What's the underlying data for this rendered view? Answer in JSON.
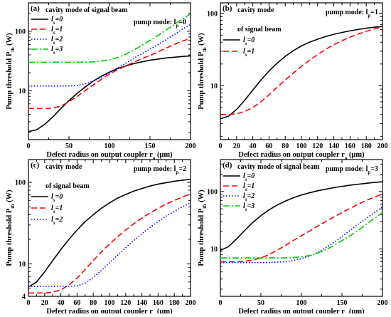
{
  "chart_data": [
    {
      "type": "line",
      "panel_label": "(a)",
      "title": "cavity mode of signal beam",
      "title2": "",
      "annotation": "pump mode: lp=0",
      "xlabel": "Defect radius on output coupler ra (μm)",
      "ylabel": "Pump threshold Pth (W)",
      "xlim": [
        0,
        200
      ],
      "ylim": [
        1.5,
        300
      ],
      "yscale": "log",
      "xticks": [
        0,
        50,
        100,
        150,
        200
      ],
      "yticks": [
        10,
        100
      ],
      "x": [
        0,
        10,
        20,
        30,
        40,
        50,
        60,
        70,
        80,
        90,
        100,
        110,
        120,
        130,
        140,
        150,
        160,
        170,
        180,
        190,
        200
      ],
      "series": [
        {
          "name": "ls=0",
          "color": "#000000",
          "dash": "",
          "values": [
            2.05,
            2.2,
            2.7,
            3.6,
            5.0,
            6.8,
            9.0,
            11.5,
            14.5,
            17.5,
            20.5,
            23.5,
            26.0,
            28.5,
            30.5,
            32.5,
            34.0,
            35.5,
            36.5,
            37.5,
            38.5
          ]
        },
        {
          "name": "ls=1",
          "color": "#ff0000",
          "dash": "8,4",
          "values": [
            5.0,
            5.0,
            5.0,
            5.1,
            5.5,
            6.5,
            8.0,
            10.0,
            12.5,
            15.5,
            19.0,
            22.5,
            26.0,
            30.0,
            34.5,
            39.0,
            45.0,
            52.0,
            60.0,
            68.0,
            76.0
          ]
        },
        {
          "name": "ls=2",
          "color": "#0000ff",
          "dash": "1.5,2.5",
          "values": [
            12.0,
            12.0,
            12.0,
            12.0,
            12.0,
            12.0,
            12.2,
            13.0,
            14.5,
            17.0,
            20.0,
            24.0,
            29.0,
            35.0,
            42.0,
            50.0,
            60.0,
            72.0,
            88.0,
            108.0,
            130.0
          ]
        },
        {
          "name": "ls=3",
          "color": "#00cc00",
          "dash": "9,3,2,3",
          "values": [
            30.0,
            30.0,
            30.0,
            30.0,
            30.0,
            30.0,
            30.0,
            30.0,
            30.5,
            31.5,
            33.0,
            36.0,
            41.0,
            48.0,
            58.0,
            70.0,
            85.0,
            105.0,
            130.0,
            160.0,
            195.0
          ]
        }
      ]
    },
    {
      "type": "line",
      "panel_label": "(b)",
      "title": "cavity mode",
      "title2": "of signal beam",
      "annotation": "pump mode: lp=1",
      "xlabel": "Defect radius on output coupler ra (μm)",
      "ylabel": "Pump threshold Pth (W)",
      "xlim": [
        0,
        200
      ],
      "ylim": [
        1.8,
        140
      ],
      "yscale": "log",
      "xticks": [
        0,
        20,
        40,
        60,
        80,
        100,
        120,
        140,
        160,
        180,
        200
      ],
      "yticks": [
        10,
        100
      ],
      "x": [
        0,
        10,
        20,
        30,
        40,
        50,
        60,
        70,
        80,
        90,
        100,
        110,
        120,
        130,
        140,
        150,
        160,
        170,
        180,
        190,
        200
      ],
      "series": [
        {
          "name": "ls=0",
          "color": "#000000",
          "dash": "",
          "values": [
            3.5,
            3.8,
            4.7,
            6.3,
            8.7,
            12.0,
            16.0,
            20.5,
            25.5,
            30.5,
            35.5,
            40.0,
            44.0,
            48.0,
            51.5,
            54.5,
            57.5,
            60.0,
            62.5,
            64.5,
            66.0
          ]
        },
        {
          "name": "ls=1",
          "color": "#ff0000",
          "dash": "8,4",
          "values": [
            4.0,
            4.0,
            4.1,
            4.4,
            5.0,
            6.0,
            7.5,
            9.5,
            12.0,
            15.0,
            18.5,
            22.5,
            27.0,
            32.0,
            37.0,
            42.0,
            47.0,
            52.0,
            56.5,
            61.0,
            65.0
          ]
        }
      ]
    },
    {
      "type": "line",
      "panel_label": "(c)",
      "title": "cavity mode",
      "title2": "of signal beam",
      "annotation": "pump mode: lp=2",
      "xlabel": "Defect radius on output coupler ra (μm)",
      "ylabel": "Pump threshold Pth (W)",
      "xlim": [
        0,
        200
      ],
      "ylim": [
        4,
        190
      ],
      "yscale": "log",
      "xticks": [
        0,
        20,
        40,
        60,
        80,
        100,
        120,
        140,
        160,
        180,
        200
      ],
      "yticks": [
        4,
        10,
        100
      ],
      "x": [
        0,
        10,
        20,
        30,
        40,
        50,
        60,
        70,
        80,
        90,
        100,
        110,
        120,
        130,
        140,
        150,
        160,
        170,
        180,
        190,
        200
      ],
      "series": [
        {
          "name": "ls=0",
          "color": "#000000",
          "dash": "",
          "values": [
            5.2,
            6.0,
            8.0,
            11.0,
            15.0,
            20.0,
            26.0,
            33.0,
            40.0,
            48.0,
            56.0,
            64.0,
            71.0,
            78.0,
            84.0,
            90.0,
            95.0,
            99.0,
            103.0,
            106.0,
            109.0
          ]
        },
        {
          "name": "ls=1",
          "color": "#ff0000",
          "dash": "8,4",
          "values": [
            4.4,
            4.4,
            4.4,
            4.5,
            4.8,
            5.5,
            6.7,
            8.5,
            11.0,
            14.0,
            17.5,
            21.5,
            26.0,
            31.0,
            36.5,
            42.0,
            48.0,
            54.0,
            60.0,
            66.0,
            72.0
          ]
        },
        {
          "name": "ls=2",
          "color": "#0000ff",
          "dash": "1.5,2.5",
          "values": [
            5.3,
            5.3,
            5.3,
            5.3,
            5.3,
            5.3,
            5.4,
            5.8,
            6.8,
            8.3,
            10.3,
            12.8,
            15.8,
            19.3,
            23.5,
            28.0,
            33.0,
            38.5,
            44.0,
            50.0,
            56.0
          ]
        }
      ]
    },
    {
      "type": "line",
      "panel_label": "(d)",
      "title": "cavity mode of signal beam",
      "title2": "",
      "annotation": "pump mode: lp=3",
      "xlabel": "Defect radius on output coupler ra (μm)",
      "ylabel": "Pump threshold Pth (W)",
      "xlim": [
        0,
        200
      ],
      "ylim": [
        1.5,
        360
      ],
      "yscale": "log",
      "xticks": [
        0,
        50,
        100,
        150,
        200
      ],
      "yticks": [
        10,
        100
      ],
      "x": [
        0,
        10,
        20,
        30,
        40,
        50,
        60,
        70,
        80,
        90,
        100,
        110,
        120,
        130,
        140,
        150,
        160,
        170,
        180,
        190,
        200
      ],
      "series": [
        {
          "name": "ls=0",
          "color": "#000000",
          "dash": "",
          "values": [
            9.5,
            11.0,
            15.0,
            21.0,
            29.0,
            38.0,
            48.0,
            58.0,
            68.0,
            78.0,
            87.0,
            95.0,
            103.0,
            110.0,
            117.0,
            123.0,
            129.0,
            134.0,
            139.0,
            144.0,
            148.0
          ]
        },
        {
          "name": "ls=1",
          "color": "#ff0000",
          "dash": "8,4",
          "values": [
            6.0,
            6.0,
            6.0,
            6.1,
            6.4,
            7.0,
            8.0,
            9.5,
            11.5,
            14.0,
            17.0,
            20.5,
            25.0,
            30.0,
            36.0,
            43.0,
            51.0,
            60.0,
            70.0,
            80.0,
            90.0
          ]
        },
        {
          "name": "ls=2",
          "color": "#0000ff",
          "dash": "1.5,2.5",
          "values": [
            5.8,
            5.8,
            5.8,
            5.8,
            5.8,
            5.8,
            5.8,
            5.9,
            6.0,
            6.3,
            6.8,
            7.5,
            8.7,
            10.5,
            13.0,
            16.5,
            21.0,
            27.0,
            34.0,
            43.0,
            54.0
          ]
        },
        {
          "name": "ls=3",
          "color": "#00cc00",
          "dash": "9,3,2,3",
          "values": [
            7.0,
            7.0,
            7.0,
            7.0,
            7.0,
            7.0,
            7.0,
            7.0,
            7.0,
            7.1,
            7.3,
            7.7,
            8.5,
            9.7,
            11.5,
            14.0,
            17.0,
            21.0,
            27.0,
            34.0,
            43.0
          ]
        }
      ]
    }
  ]
}
